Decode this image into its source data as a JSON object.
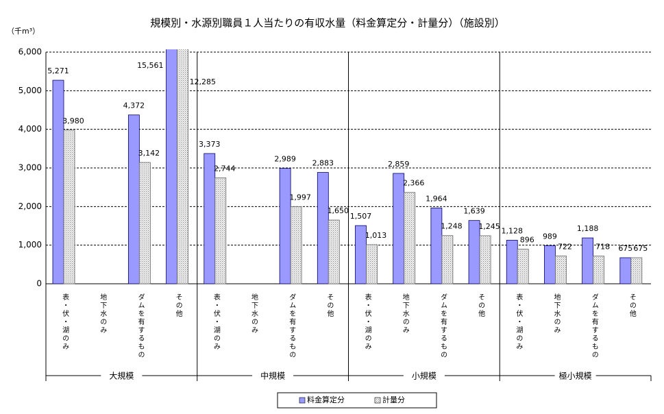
{
  "chart_data": {
    "type": "bar",
    "title": "規模別・水源別職員１人当たりの有収水量（料金算定分・計量分）（施設別）",
    "y_unit": "（千m³）",
    "categories": [
      "表・伏・湖のみ",
      "地下水のみ",
      "ダムを有するもの",
      "その他",
      "表・伏・湖のみ",
      "地下水のみ",
      "ダムを有するもの",
      "その他",
      "表・伏・湖のみ",
      "地下水のみ",
      "ダムを有するもの",
      "その他",
      "表・伏・湖のみ",
      "地下水のみ",
      "ダムを有するもの",
      "その他"
    ],
    "groups": [
      "大規模",
      "中規模",
      "小規模",
      "極小規模"
    ],
    "series": [
      {
        "name": "料金算定分",
        "color": "#9999ff",
        "values": [
          5271,
          null,
          4372,
          15561,
          3373,
          null,
          2989,
          2883,
          1507,
          2859,
          1964,
          1639,
          1128,
          989,
          1188,
          675
        ],
        "value_labels": [
          "5,271",
          null,
          "4,372",
          "15,561",
          "3,373",
          null,
          "2,989",
          "2,883",
          "1,507",
          "2,859",
          "1,964",
          "1,639",
          "1,128",
          "989",
          "1,188",
          "675"
        ]
      },
      {
        "name": "計量分",
        "color": "#d9d9d9",
        "values": [
          3980,
          null,
          3142,
          12285,
          2744,
          null,
          1997,
          1650,
          1013,
          2366,
          1248,
          1245,
          896,
          722,
          718,
          675
        ],
        "value_labels": [
          "3,980",
          null,
          "3,142",
          "12,285",
          "2,744",
          null,
          "1,997",
          "1,650",
          "1,013",
          "2,366",
          "1,248",
          "1,245",
          "896",
          "722",
          "718",
          "675"
        ]
      }
    ],
    "ylim": [
      0,
      6000
    ],
    "yticks": [
      {
        "value": 0,
        "label": "0"
      },
      {
        "value": 1000,
        "label": "1,000"
      },
      {
        "value": 2000,
        "label": "2,000"
      },
      {
        "value": 3000,
        "label": "3,000"
      },
      {
        "value": 4000,
        "label": "4,000"
      },
      {
        "value": 5000,
        "label": "5,000"
      },
      {
        "value": 6000,
        "label": "6,000"
      }
    ],
    "grid": true
  }
}
